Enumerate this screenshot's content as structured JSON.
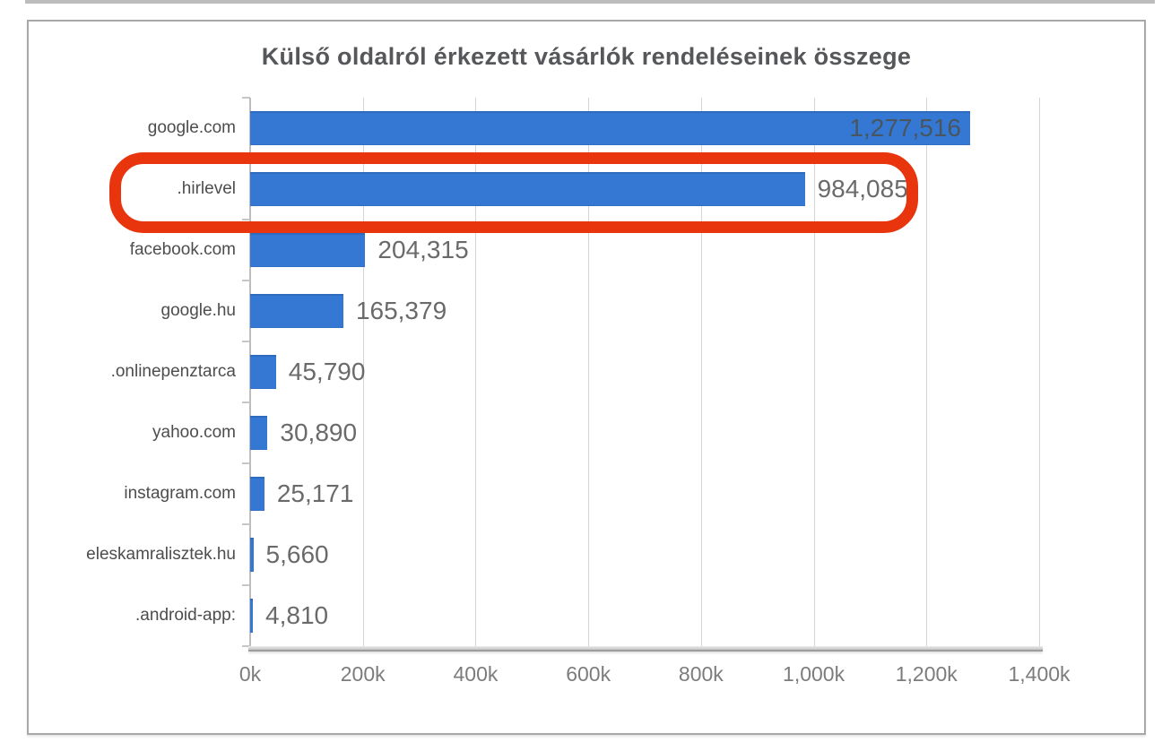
{
  "page": {
    "background": "#ffffff"
  },
  "chart_data": {
    "type": "bar",
    "orientation": "horizontal",
    "title": "Külső oldalról érkezett vásárlók rendeléseinek összege",
    "categories": [
      "google.com",
      ".hirlevel",
      "facebook.com",
      "google.hu",
      ".onlinepenztarca",
      "yahoo.com",
      "instagram.com",
      "eleskamralisztek.hu",
      ".android-app:"
    ],
    "values": [
      1277516,
      984085,
      204315,
      165379,
      45790,
      30890,
      25171,
      5660,
      4810
    ],
    "value_labels": [
      "1,277,516",
      "984,085",
      "204,315",
      "165,379",
      "45,790",
      "30,890",
      "25,171",
      "5,660",
      "4,810"
    ],
    "x_tick_labels": [
      "0k",
      "200k",
      "400k",
      "600k",
      "800k",
      "1,000k",
      "1,200k",
      "1,400k"
    ],
    "xlim": [
      0,
      1400000
    ],
    "xlabel": "",
    "ylabel": "",
    "grid": "vertical-only",
    "legend": "none",
    "bar_color": "#3478d4",
    "first_value_label_inside_bar": true
  },
  "annotation": {
    "shape": "rounded-rectangle-outline",
    "color": "#e8350d",
    "highlighted_category": ".hirlevel",
    "highlighted_value": "984,085"
  }
}
